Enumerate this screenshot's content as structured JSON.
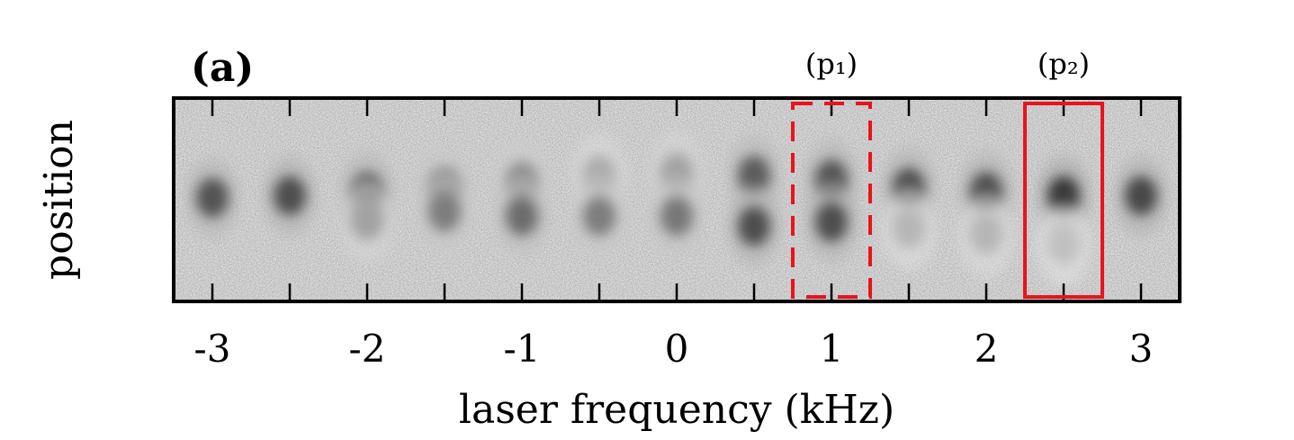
{
  "panel_label": "(a)",
  "chart_data": {
    "type": "heatmap",
    "xlabel": "laser frequency (kHz)",
    "ylabel": "position",
    "xlim": [
      -3.25,
      3.25
    ],
    "xticks": [
      -3,
      -2,
      -1,
      0,
      1,
      2,
      3
    ],
    "xtick_labels": [
      "-3",
      "-2",
      "-1",
      "0",
      "1",
      "2",
      "3"
    ],
    "minor_tick_step": 0.5,
    "colormap": "grayscale (dark = high density)",
    "columns": [
      {
        "freq": -3.0,
        "lobes": [
          {
            "pos": 0.49,
            "intensity": 0.82
          }
        ]
      },
      {
        "freq": -2.5,
        "lobes": [
          {
            "pos": 0.48,
            "intensity": 0.85
          }
        ]
      },
      {
        "freq": -2.0,
        "lobes": [
          {
            "pos": 0.46,
            "intensity": 0.8
          },
          {
            "pos": 0.6,
            "intensity": 0.45
          }
        ]
      },
      {
        "freq": -1.5,
        "lobes": [
          {
            "pos": 0.44,
            "intensity": 0.62
          },
          {
            "pos": 0.56,
            "intensity": 0.62
          }
        ]
      },
      {
        "freq": -1.0,
        "lobes": [
          {
            "pos": 0.41,
            "intensity": 0.55
          },
          {
            "pos": 0.58,
            "intensity": 0.7
          }
        ]
      },
      {
        "freq": -0.5,
        "lobes": [
          {
            "pos": 0.38,
            "intensity": 0.4
          },
          {
            "pos": 0.58,
            "intensity": 0.62
          }
        ]
      },
      {
        "freq": 0.0,
        "lobes": [
          {
            "pos": 0.37,
            "intensity": 0.45
          },
          {
            "pos": 0.58,
            "intensity": 0.65
          }
        ]
      },
      {
        "freq": 0.5,
        "lobes": [
          {
            "pos": 0.38,
            "intensity": 0.78
          },
          {
            "pos": 0.63,
            "intensity": 0.85
          }
        ]
      },
      {
        "freq": 1.0,
        "lobes": [
          {
            "pos": 0.4,
            "intensity": 0.82
          },
          {
            "pos": 0.61,
            "intensity": 0.85
          }
        ]
      },
      {
        "freq": 1.5,
        "lobes": [
          {
            "pos": 0.44,
            "intensity": 0.85
          },
          {
            "pos": 0.64,
            "intensity": 0.35
          }
        ]
      },
      {
        "freq": 2.0,
        "lobes": [
          {
            "pos": 0.46,
            "intensity": 0.85
          },
          {
            "pos": 0.67,
            "intensity": 0.35
          }
        ]
      },
      {
        "freq": 2.5,
        "lobes": [
          {
            "pos": 0.48,
            "intensity": 0.95
          },
          {
            "pos": 0.72,
            "intensity": 0.3
          }
        ]
      },
      {
        "freq": 3.0,
        "lobes": [
          {
            "pos": 0.48,
            "intensity": 0.88
          }
        ]
      }
    ],
    "annotations": [
      {
        "label": "(p₁)",
        "freq_range": [
          0.75,
          1.25
        ],
        "style": "dashed",
        "color": "#e8141c"
      },
      {
        "label": "(p₂)",
        "freq_range": [
          2.25,
          2.75
        ],
        "style": "solid",
        "color": "#e8141c"
      }
    ],
    "grid": false,
    "legend": "none"
  }
}
